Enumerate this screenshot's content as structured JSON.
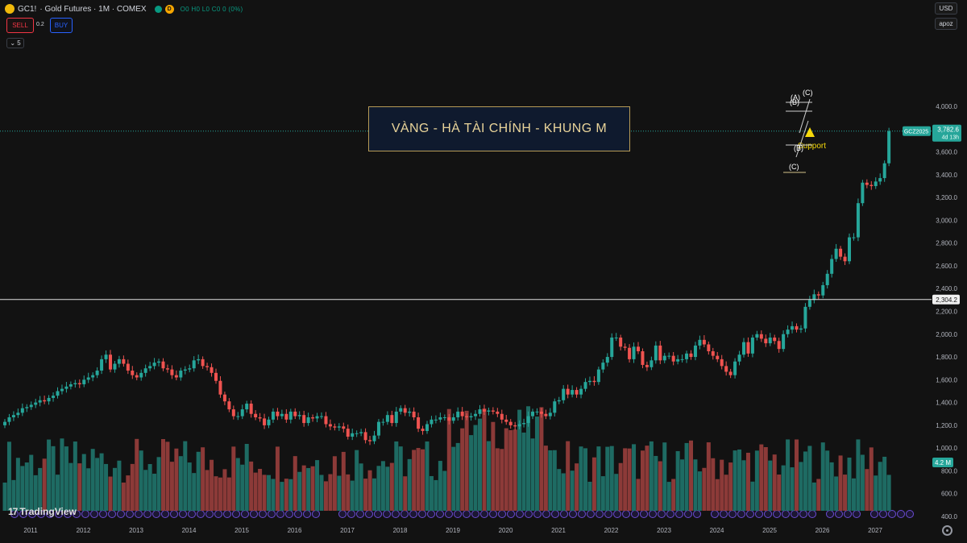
{
  "header": {
    "symbol": "GC1!",
    "description": "· Gold Futures · 1M · COMEX",
    "indicator_letter": "D",
    "ohlc": "O0 H0 L0 C0 0 (0%)"
  },
  "trade": {
    "sell_label": "SELL",
    "buy_label": "BUY",
    "spread": "0.2",
    "collapse_label": "⌄ 5"
  },
  "axis_controls": {
    "currency": "USD",
    "scale": "apoz"
  },
  "annotation": {
    "title": "VÀNG - HÀ TÀI CHÍNH - KHUNG M",
    "support_label": "Support",
    "wave_labels": [
      "(C)",
      "(A)",
      "(B)",
      "(B)",
      "(C)"
    ]
  },
  "price_tags": {
    "contract": "GCZ2025",
    "last_price": "3,782.6",
    "countdown": "4d 13h",
    "hline_price": "2,304.2",
    "volume": "4.2 M"
  },
  "brand": {
    "logo_text": "TradingView",
    "logo_mark": "17"
  },
  "colors": {
    "background": "#121212",
    "up": "#26a69a",
    "down": "#ef5350",
    "volume_up": "#1e6b63",
    "volume_down": "#8c3a38",
    "title_border": "#b79b56",
    "title_bg": "#0f1a2e",
    "title_text": "#e9d49a",
    "support": "#f5d90a",
    "event_marker": "#6a4bd1"
  },
  "chart_data": {
    "type": "candlestick",
    "title": "VÀNG - HÀ TÀI CHÍNH - KHUNG M",
    "xlabel": "",
    "ylabel": "",
    "x_ticks": [
      "2011",
      "2012",
      "2013",
      "2014",
      "2015",
      "2016",
      "2017",
      "2018",
      "2019",
      "2020",
      "2021",
      "2022",
      "2023",
      "2024",
      "2025",
      "2026",
      "2027"
    ],
    "y_ticks": [
      "400.0",
      "600.0",
      "800.0",
      "1,000.0",
      "1,200.0",
      "1,400.0",
      "1,600.0",
      "1,800.0",
      "2,000.0",
      "2,200.0",
      "2,400.0",
      "2,600.0",
      "2,800.0",
      "3,000.0",
      "3,200.0",
      "3,400.0",
      "3,600.0",
      "4,000.0"
    ],
    "ylim": [
      400,
      4000
    ],
    "grid": false,
    "monthly_close": [
      1230,
      1270,
      1290,
      1310,
      1350,
      1360,
      1380,
      1400,
      1420,
      1410,
      1440,
      1460,
      1500,
      1520,
      1540,
      1560,
      1570,
      1560,
      1600,
      1620,
      1640,
      1680,
      1780,
      1820,
      1690,
      1740,
      1780,
      1740,
      1680,
      1640,
      1620,
      1660,
      1700,
      1720,
      1750,
      1760,
      1700,
      1690,
      1640,
      1620,
      1680,
      1690,
      1700,
      1770,
      1780,
      1720,
      1710,
      1660,
      1590,
      1470,
      1410,
      1340,
      1280,
      1280,
      1340,
      1390,
      1300,
      1270,
      1260,
      1200,
      1250,
      1320,
      1280,
      1300,
      1250,
      1320,
      1280,
      1290,
      1220,
      1270,
      1260,
      1280,
      1280,
      1210,
      1190,
      1180,
      1190,
      1170,
      1100,
      1130,
      1130,
      1140,
      1070,
      1060,
      1110,
      1230,
      1230,
      1290,
      1220,
      1320,
      1350,
      1310,
      1320,
      1270,
      1170,
      1150,
      1210,
      1250,
      1250,
      1270,
      1270,
      1240,
      1270,
      1320,
      1280,
      1270,
      1280,
      1300,
      1340,
      1320,
      1330,
      1320,
      1300,
      1250,
      1230,
      1200,
      1190,
      1210,
      1220,
      1280,
      1320,
      1320,
      1300,
      1280,
      1310,
      1410,
      1420,
      1520,
      1470,
      1510,
      1470,
      1520,
      1580,
      1590,
      1580,
      1690,
      1750,
      1800,
      1970,
      1970,
      1890,
      1880,
      1780,
      1890,
      1850,
      1730,
      1710,
      1770,
      1900,
      1770,
      1810,
      1810,
      1760,
      1780,
      1780,
      1830,
      1800,
      1900,
      1950,
      1910,
      1850,
      1810,
      1780,
      1720,
      1670,
      1640,
      1760,
      1820,
      1930,
      1830,
      1970,
      2000,
      1960,
      1920,
      1970,
      1940,
      1870,
      2000,
      2040,
      2070,
      2040,
      2050,
      2240,
      2300,
      2350,
      2340,
      2430,
      2530,
      2660,
      2750,
      2680,
      2640,
      2850,
      2850,
      3150,
      3330,
      3310,
      3300,
      3340,
      3370,
      3500,
      3782.6
    ],
    "volume_millions_approx": "monthly bars, range ~0.4M–1.3M",
    "horizontal_line": 2304.2,
    "last_price": 3782.6
  }
}
